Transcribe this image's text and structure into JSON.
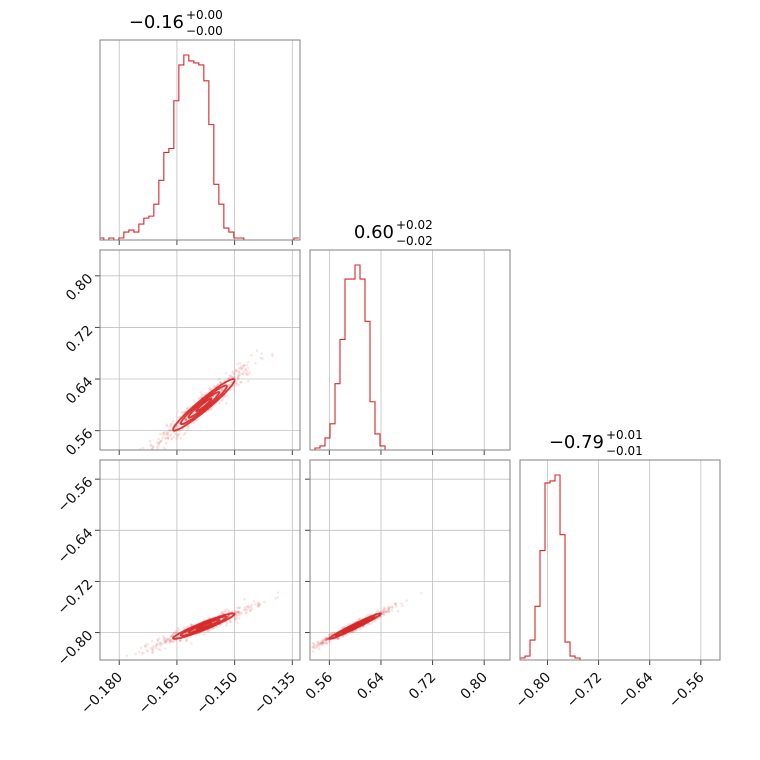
{
  "chart_data": {
    "type": "corner",
    "color": "#d62728",
    "grid": true,
    "parameters": [
      {
        "median": "−0.16",
        "plus": "+0.00",
        "minus": "−0.00",
        "range": [
          -0.185,
          -0.133
        ],
        "ticks": [
          -0.18,
          -0.165,
          -0.15,
          -0.135
        ],
        "tick_labels": [
          "−0.180",
          "−0.165",
          "−0.150",
          "−0.135"
        ],
        "hist_edges_start": -0.1853,
        "hist_bin_width": 0.0013,
        "hist_counts": [
          0.01,
          0.0,
          0.01,
          0.0,
          0.01,
          0.04,
          0.05,
          0.04,
          0.08,
          0.11,
          0.12,
          0.18,
          0.3,
          0.44,
          0.46,
          0.7,
          0.88,
          0.93,
          0.9,
          0.89,
          0.88,
          0.8,
          0.58,
          0.28,
          0.18,
          0.06,
          0.04,
          0.01,
          0.01,
          0.0,
          0.0,
          0.0,
          0.0,
          0.0,
          0.0,
          0.0,
          0.0,
          0.0,
          0.0,
          0.01
        ]
      },
      {
        "median": "0.60",
        "plus": "+0.02",
        "minus": "−0.02",
        "range": [
          0.53,
          0.84
        ],
        "ticks": [
          0.56,
          0.64,
          0.72,
          0.8
        ],
        "tick_labels": [
          "0.56",
          "0.64",
          "0.72",
          "0.80"
        ],
        "hist_edges_start": 0.53,
        "hist_bin_width": 0.00775,
        "hist_counts": [
          0.0,
          0.01,
          0.02,
          0.06,
          0.13,
          0.33,
          0.55,
          0.85,
          0.85,
          0.92,
          0.85,
          0.64,
          0.24,
          0.08,
          0.02,
          0.0,
          0.0,
          0.0,
          0.0,
          0.0,
          0.0,
          0.0,
          0.0,
          0.0,
          0.0,
          0.0,
          0.0,
          0.0,
          0.0,
          0.0,
          0.0,
          0.0,
          0.0,
          0.0,
          0.0,
          0.0,
          0.0,
          0.0,
          0.0,
          0.0
        ]
      },
      {
        "median": "−0.79",
        "plus": "+0.01",
        "minus": "−0.01",
        "range": [
          -0.843,
          -0.53
        ],
        "ticks": [
          -0.8,
          -0.72,
          -0.64,
          -0.56
        ],
        "tick_labels": [
          "−0.80",
          "−0.72",
          "−0.64",
          "−0.56"
        ],
        "hist_edges_start": -0.843,
        "hist_bin_width": 0.00783,
        "hist_counts": [
          0.01,
          0.02,
          0.1,
          0.27,
          0.55,
          0.89,
          0.9,
          0.93,
          0.63,
          0.09,
          0.02,
          0.01,
          0.0,
          0.0,
          0.0,
          0.0,
          0.0,
          0.0,
          0.0,
          0.0,
          0.0,
          0.0,
          0.0,
          0.0,
          0.0,
          0.0,
          0.0,
          0.0,
          0.0,
          0.0,
          0.0,
          0.0,
          0.0,
          0.0,
          0.0,
          0.0,
          0.0,
          0.0,
          0.0,
          0.0
        ]
      }
    ],
    "correlations": [
      {
        "x": 0,
        "y": 1,
        "mean": [
          -0.158,
          0.6
        ],
        "sd": [
          0.004,
          0.02
        ],
        "rho": 0.96
      },
      {
        "x": 0,
        "y": 2,
        "mean": [
          -0.158,
          -0.79
        ],
        "sd": [
          0.004,
          0.01
        ],
        "rho": 0.95
      },
      {
        "x": 1,
        "y": 2,
        "mean": [
          0.6,
          -0.79
        ],
        "sd": [
          0.02,
          0.01
        ],
        "rho": 0.98
      }
    ]
  }
}
